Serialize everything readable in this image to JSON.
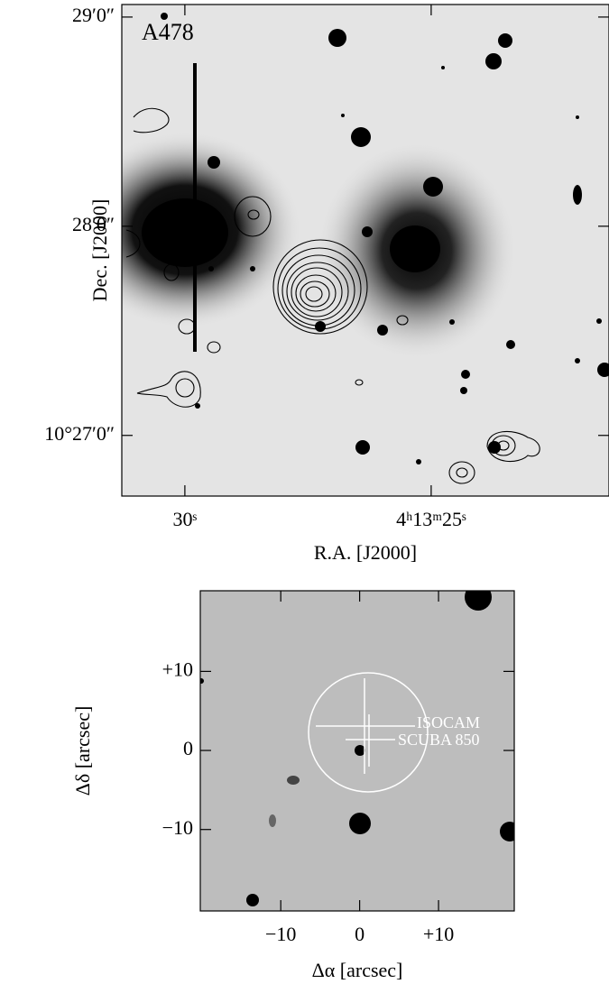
{
  "chart_data": [
    {
      "type": "image",
      "annotation": "A478",
      "x_label": "R.A. [J2000]",
      "y_label": "Dec. [J2000]",
      "xlim": [
        31.28,
        21.39
      ],
      "xticks": [
        {
          "value": 30,
          "label": "30ˢ"
        },
        {
          "value": 25,
          "label": "4ʰ13ᵐ25ˢ"
        }
      ],
      "ylim": [
        26.71,
        29.06
      ],
      "yticks": [
        {
          "value": 29,
          "label": "29′0″"
        },
        {
          "value": 28,
          "label": "28′0″"
        },
        {
          "value": 27,
          "label": "10°27′0″"
        }
      ]
    },
    {
      "type": "image",
      "x_label": "Δα [arcsec]",
      "y_label": "Δδ [arcsec]",
      "annotations": [
        "ISOCAM",
        "SCUBA 850"
      ],
      "xlim": [
        -20.2,
        19.6
      ],
      "xticks": [
        {
          "value": -10,
          "label": "−10"
        },
        0,
        {
          "value": 10,
          "label": "+10"
        }
      ],
      "ylim": [
        -20.3,
        20.2
      ],
      "yticks": [
        {
          "value": 10,
          "label": "+10"
        },
        0,
        {
          "value": -10,
          "label": "−10"
        }
      ]
    }
  ]
}
